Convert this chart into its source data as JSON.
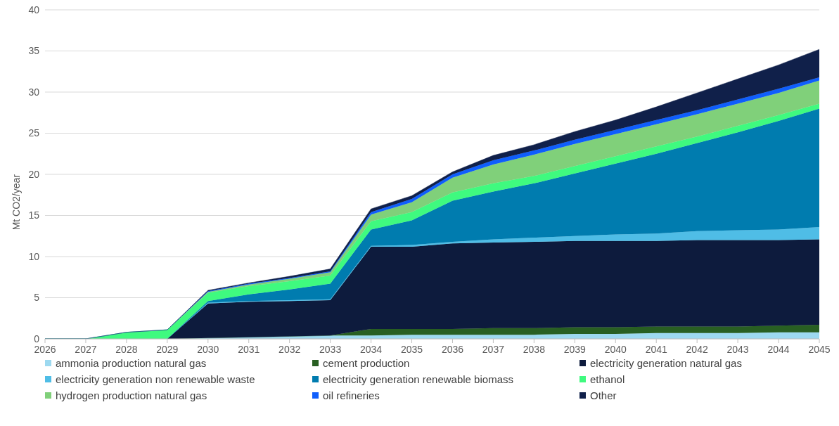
{
  "chart_data": {
    "type": "area",
    "stacked": true,
    "ylabel": "Mt CO2/year",
    "x": [
      2026,
      2027,
      2028,
      2029,
      2030,
      2031,
      2032,
      2033,
      2034,
      2035,
      2036,
      2037,
      2038,
      2039,
      2040,
      2041,
      2042,
      2043,
      2044,
      2045
    ],
    "xlim": [
      2026,
      2045
    ],
    "xticks": [
      2026,
      2027,
      2028,
      2029,
      2030,
      2031,
      2032,
      2033,
      2034,
      2035,
      2036,
      2037,
      2038,
      2039,
      2040,
      2041,
      2042,
      2043,
      2044,
      2045
    ],
    "ylim": [
      0,
      40
    ],
    "yticks": [
      0,
      5,
      10,
      15,
      20,
      25,
      30,
      35,
      40
    ],
    "grid": "y",
    "legend": "bottom",
    "series": [
      {
        "name": "ammonia production natural gas",
        "color": "#9dd9f0",
        "values": [
          0,
          0,
          0,
          0,
          0.1,
          0.2,
          0.3,
          0.4,
          0.4,
          0.5,
          0.5,
          0.5,
          0.5,
          0.6,
          0.6,
          0.7,
          0.7,
          0.7,
          0.8,
          0.8
        ]
      },
      {
        "name": "cement production",
        "color": "#285f22",
        "values": [
          0,
          0,
          0,
          0,
          0,
          0,
          0,
          0,
          0.8,
          0.7,
          0.7,
          0.8,
          0.8,
          0.8,
          0.8,
          0.8,
          0.8,
          0.8,
          0.8,
          0.9
        ]
      },
      {
        "name": "electricity generation natural gas",
        "color": "#0d1b3d",
        "values": [
          0,
          0,
          0,
          0,
          4.2,
          4.3,
          4.3,
          4.3,
          10.0,
          10.0,
          10.4,
          10.4,
          10.5,
          10.5,
          10.5,
          10.4,
          10.5,
          10.5,
          10.4,
          10.4
        ]
      },
      {
        "name": "electricity generation non renewable waste",
        "color": "#4fbde6",
        "values": [
          0,
          0,
          0,
          0,
          0.1,
          0.1,
          0.1,
          0.1,
          0.1,
          0.2,
          0.2,
          0.4,
          0.5,
          0.6,
          0.8,
          0.9,
          1.1,
          1.2,
          1.3,
          1.5
        ]
      },
      {
        "name": "electricity generation renewable biomass",
        "color": "#007caf",
        "values": [
          0,
          0,
          0,
          0,
          0.2,
          0.8,
          1.3,
          1.9,
          2.0,
          3.0,
          5.0,
          5.8,
          6.6,
          7.6,
          8.6,
          9.7,
          10.7,
          11.9,
          13.2,
          14.4
        ]
      },
      {
        "name": "ethanol",
        "color": "#3ffa7f",
        "values": [
          0,
          0,
          0.8,
          1.1,
          1.0,
          1.0,
          1.0,
          1.0,
          1.0,
          1.0,
          1.0,
          1.0,
          0.9,
          0.9,
          0.9,
          0.9,
          0.8,
          0.8,
          0.7,
          0.6
        ]
      },
      {
        "name": "hydrogen production natural gas",
        "color": "#80d07a",
        "values": [
          0,
          0,
          0,
          0,
          0.1,
          0.2,
          0.3,
          0.4,
          0.8,
          1.2,
          1.8,
          2.3,
          2.6,
          2.7,
          2.7,
          2.7,
          2.7,
          2.7,
          2.7,
          2.8
        ]
      },
      {
        "name": "oil refineries",
        "color": "#0f5efc",
        "values": [
          0,
          0,
          0,
          0,
          0.1,
          0.1,
          0.1,
          0.1,
          0.3,
          0.4,
          0.4,
          0.5,
          0.5,
          0.5,
          0.5,
          0.5,
          0.5,
          0.5,
          0.5,
          0.4
        ]
      },
      {
        "name": "Other",
        "color": "#10204a",
        "values": [
          0,
          0,
          0,
          0,
          0.1,
          0.1,
          0.2,
          0.3,
          0.4,
          0.4,
          0.3,
          0.6,
          0.7,
          1.0,
          1.2,
          1.6,
          2.1,
          2.5,
          2.9,
          3.4
        ]
      }
    ]
  }
}
